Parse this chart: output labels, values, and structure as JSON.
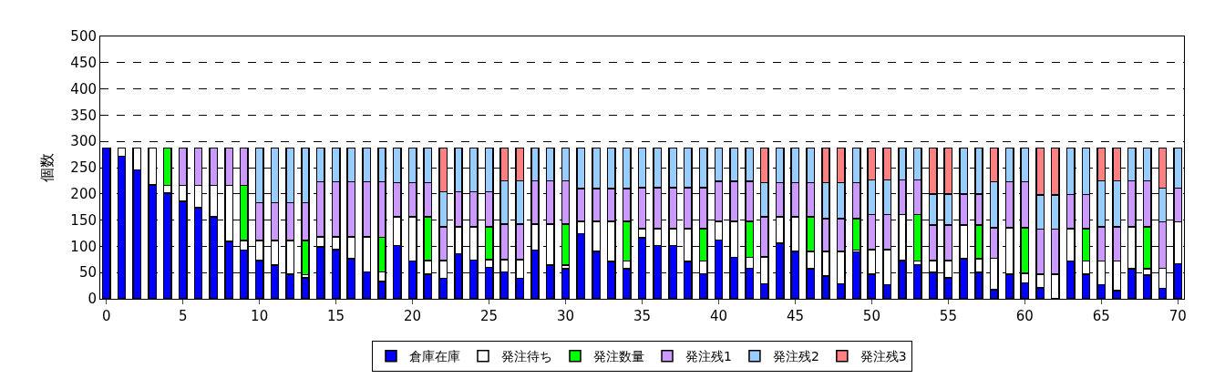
{
  "chart_data": {
    "type": "bar",
    "stacked": true,
    "ylabel": "個数",
    "x": [
      0,
      1,
      2,
      3,
      4,
      5,
      6,
      7,
      8,
      9,
      10,
      11,
      12,
      13,
      14,
      15,
      16,
      17,
      18,
      19,
      20,
      21,
      22,
      23,
      24,
      25,
      26,
      27,
      28,
      29,
      30,
      31,
      32,
      33,
      34,
      35,
      36,
      37,
      38,
      39,
      40,
      41,
      42,
      43,
      44,
      45,
      46,
      47,
      48,
      49,
      50,
      51,
      52,
      53,
      54,
      55,
      56,
      57,
      58,
      59,
      60,
      61,
      62,
      63,
      64,
      65,
      66,
      67,
      68,
      69,
      70
    ],
    "series": [
      {
        "name": "倉庫在庫",
        "color": "#0000ff",
        "values": [
          287,
          272,
          246,
          217,
          201,
          186,
          174,
          156,
          109,
          93,
          73,
          64,
          47,
          40,
          99,
          94,
          76,
          51,
          33,
          102,
          72,
          47,
          39,
          86,
          74,
          60,
          51,
          39,
          93,
          64,
          57,
          124,
          90,
          71,
          57,
          116,
          102,
          102,
          71,
          48,
          112,
          79,
          58,
          29,
          106,
          90,
          57,
          43,
          29,
          89,
          47,
          27,
          73,
          65,
          50,
          40,
          76,
          50,
          17,
          47,
          30,
          21,
          0,
          72,
          47,
          27,
          16,
          57,
          45,
          20,
          67
        ]
      },
      {
        "name": "発注待ち",
        "color": "#ffffff",
        "values": [
          0,
          15,
          41,
          70,
          15,
          30,
          42,
          60,
          107,
          18,
          38,
          47,
          64,
          6,
          19,
          24,
          42,
          67,
          18,
          54,
          84,
          26,
          34,
          51,
          63,
          15,
          24,
          36,
          49,
          78,
          7,
          24,
          58,
          77,
          15,
          18,
          32,
          32,
          63,
          24,
          36,
          69,
          21,
          51,
          50,
          66,
          33,
          47,
          61,
          4,
          47,
          67,
          88,
          7,
          23,
          33,
          65,
          26,
          60,
          88,
          19,
          26,
          47,
          62,
          25,
          45,
          56,
          80,
          12,
          38,
          80
        ]
      },
      {
        "name": "発注数量",
        "color": "#00ff00",
        "values": [
          0,
          0,
          0,
          0,
          71,
          0,
          0,
          0,
          0,
          105,
          0,
          0,
          0,
          65,
          0,
          0,
          0,
          0,
          66,
          0,
          0,
          83,
          0,
          0,
          0,
          62,
          0,
          0,
          0,
          0,
          78,
          0,
          0,
          0,
          76,
          0,
          0,
          0,
          0,
          62,
          0,
          0,
          69,
          0,
          0,
          0,
          66,
          0,
          0,
          60,
          0,
          0,
          0,
          89,
          0,
          0,
          0,
          65,
          0,
          0,
          86,
          0,
          0,
          0,
          62,
          0,
          0,
          0,
          80,
          0,
          0
        ]
      },
      {
        "name": "発注残1",
        "color": "#cc99ff",
        "values": [
          0,
          0,
          0,
          0,
          0,
          71,
          71,
          71,
          71,
          71,
          72,
          72,
          72,
          72,
          105,
          105,
          105,
          105,
          106,
          65,
          65,
          65,
          64,
          67,
          67,
          67,
          67,
          67,
          83,
          83,
          83,
          62,
          62,
          62,
          62,
          78,
          78,
          78,
          78,
          78,
          76,
          76,
          76,
          76,
          65,
          65,
          65,
          63,
          63,
          68,
          67,
          67,
          66,
          66,
          68,
          68,
          59,
          59,
          58,
          88,
          88,
          86,
          86,
          65,
          65,
          65,
          65,
          88,
          88,
          89,
          64
        ]
      },
      {
        "name": "発注残2",
        "color": "#99ccff",
        "values": [
          0,
          0,
          0,
          0,
          0,
          0,
          0,
          0,
          0,
          0,
          104,
          104,
          104,
          104,
          64,
          64,
          64,
          64,
          64,
          66,
          66,
          66,
          67,
          83,
          83,
          83,
          83,
          83,
          62,
          62,
          62,
          77,
          77,
          77,
          77,
          75,
          75,
          75,
          75,
          75,
          63,
          63,
          63,
          65,
          66,
          66,
          66,
          68,
          68,
          66,
          66,
          66,
          60,
          60,
          59,
          59,
          87,
          87,
          88,
          64,
          64,
          65,
          65,
          88,
          88,
          88,
          88,
          62,
          62,
          64,
          76
        ]
      },
      {
        "name": "発注残3",
        "color": "#ff8080",
        "values": [
          0,
          0,
          0,
          0,
          0,
          0,
          0,
          0,
          0,
          0,
          0,
          0,
          0,
          0,
          0,
          0,
          0,
          0,
          0,
          0,
          0,
          0,
          83,
          0,
          0,
          0,
          62,
          62,
          0,
          0,
          0,
          0,
          0,
          0,
          0,
          0,
          0,
          0,
          0,
          0,
          0,
          0,
          0,
          66,
          0,
          0,
          0,
          66,
          66,
          0,
          60,
          60,
          0,
          0,
          87,
          87,
          0,
          0,
          64,
          0,
          0,
          89,
          89,
          0,
          0,
          62,
          62,
          0,
          0,
          76,
          0
        ]
      }
    ],
    "xlim": [
      -0.4,
      70.4
    ],
    "xticks": [
      0,
      5,
      10,
      15,
      20,
      25,
      30,
      35,
      40,
      45,
      50,
      55,
      60,
      65,
      70
    ],
    "ylim": [
      0,
      500
    ],
    "yticks": [
      0,
      50,
      100,
      150,
      200,
      250,
      300,
      350,
      400,
      450,
      500
    ],
    "grid": "y",
    "legend": "bottom"
  }
}
